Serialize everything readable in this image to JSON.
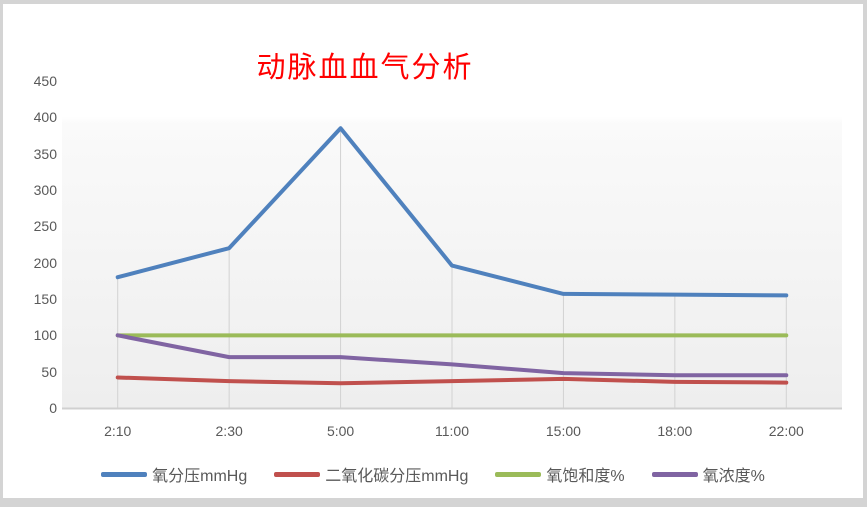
{
  "title": {
    "text": "动脉血血气分析",
    "color": "#ff0000"
  },
  "chart_data": {
    "type": "line",
    "title": "动脉血血气分析",
    "categories": [
      "2:10",
      "2:30",
      "5:00",
      "11:00",
      "15:00",
      "18:00",
      "22:00"
    ],
    "series": [
      {
        "name": "氧分压mmHg",
        "color": "#4f81bd",
        "values": [
          180,
          220,
          385,
          196,
          157,
          156,
          155
        ]
      },
      {
        "name": "二氧化碳分压mmHg",
        "color": "#c0504d",
        "values": [
          42,
          37,
          34,
          37,
          40,
          36,
          35
        ]
      },
      {
        "name": "氧饱和度%",
        "color": "#9bbb59",
        "values": [
          100,
          100,
          100,
          100,
          100,
          100,
          100
        ]
      },
      {
        "name": "氧浓度%",
        "color": "#8064a2",
        "values": [
          100,
          70,
          70,
          60,
          48,
          45,
          45
        ]
      }
    ],
    "xlabel": "",
    "ylabel": "",
    "ylim": [
      0,
      450
    ],
    "ytick_step": 50,
    "grid": "drop-lines-vertical-only",
    "legend_position": "bottom",
    "axis_label_color": "#595959",
    "gridline_color": "#d2d2d2",
    "axisline_color": "#d0d0d0",
    "plot_fill_top": "#ffffff",
    "plot_fill_bottom": "#eeeeee"
  }
}
